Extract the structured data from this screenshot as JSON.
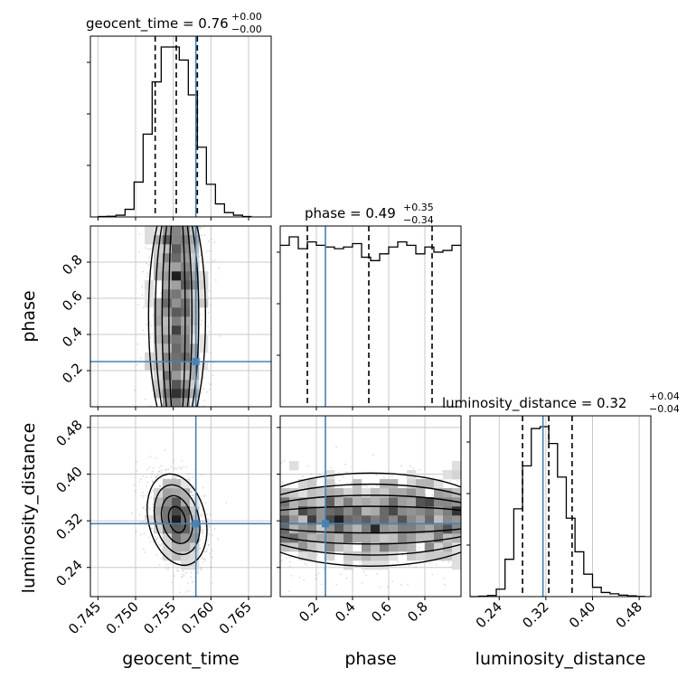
{
  "chart_data": {
    "type": "corner",
    "parameters": [
      {
        "name": "geocent_time",
        "range": [
          0.744,
          0.768
        ],
        "ticks": [
          "0.745",
          "0.750",
          "0.755",
          "0.760",
          "0.765"
        ],
        "tick_values": [
          0.745,
          0.75,
          0.755,
          0.76,
          0.765
        ],
        "title_main": "geocent_time = 0.76",
        "title_sup": "+0.00",
        "title_sub": "−0.00",
        "quantiles": [
          0.7526,
          0.7554,
          0.7582
        ],
        "truth": 0.758,
        "histogram": {
          "bin_edges": [
            0.745,
            0.7462,
            0.7474,
            0.7486,
            0.7498,
            0.751,
            0.7522,
            0.7534,
            0.7546,
            0.7558,
            0.757,
            0.7582,
            0.7594,
            0.7606,
            0.7618,
            0.763,
            0.7642,
            0.7654
          ],
          "counts": [
            2,
            3,
            8,
            35,
            160,
            380,
            620,
            780,
            780,
            720,
            560,
            320,
            150,
            60,
            20,
            8,
            2
          ]
        }
      },
      {
        "name": "phase",
        "range": [
          0.0,
          1.0
        ],
        "ticks": [
          "0.2",
          "0.4",
          "0.6",
          "0.8"
        ],
        "tick_values": [
          0.2,
          0.4,
          0.6,
          0.8
        ],
        "title_main": "phase = 0.49",
        "title_sup": "+0.35",
        "title_sub": "−0.34",
        "quantiles": [
          0.15,
          0.49,
          0.84
        ],
        "truth": 0.25,
        "histogram": {
          "bin_edges": [
            0.0,
            0.05,
            0.1,
            0.15,
            0.2,
            0.25,
            0.3,
            0.35,
            0.4,
            0.45,
            0.5,
            0.55,
            0.6,
            0.65,
            0.7,
            0.75,
            0.8,
            0.85,
            0.9,
            0.95,
            1.0
          ],
          "counts": [
            95,
            100,
            93,
            97,
            95,
            94,
            93,
            94,
            96,
            88,
            86,
            90,
            94,
            97,
            95,
            90,
            94,
            91,
            92,
            95
          ]
        }
      },
      {
        "name": "luminosity_distance",
        "range": [
          0.19,
          0.5
        ],
        "ticks": [
          "0.24",
          "0.32",
          "0.40",
          "0.48"
        ],
        "tick_values": [
          0.24,
          0.32,
          0.4,
          0.48
        ],
        "title_main": "luminosity_distance = 0.32",
        "title_sup": "+0.04",
        "title_sub": "−0.04",
        "quantiles": [
          0.28,
          0.325,
          0.365
        ],
        "truth": 0.315,
        "histogram": {
          "bin_edges": [
            0.19,
            0.205,
            0.22,
            0.235,
            0.25,
            0.265,
            0.28,
            0.295,
            0.31,
            0.325,
            0.34,
            0.355,
            0.37,
            0.385,
            0.4,
            0.415,
            0.43,
            0.445,
            0.46,
            0.475,
            0.49
          ],
          "counts": [
            0,
            2,
            6,
            40,
            200,
            470,
            700,
            900,
            910,
            820,
            640,
            420,
            240,
            120,
            50,
            22,
            15,
            8,
            4,
            1
          ]
        }
      }
    ],
    "truth_color": "#4682b4",
    "grid": true
  }
}
